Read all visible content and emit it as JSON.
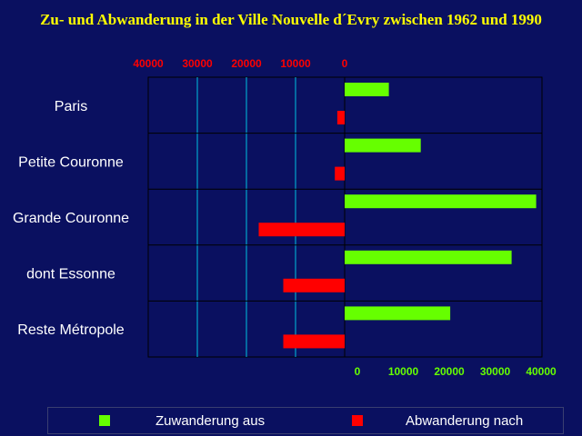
{
  "chart_data": {
    "type": "bar",
    "title": "Zu- und Abwanderung in der Ville Nouvelle d´Evry zwischen 1962 und 1990",
    "categories": [
      "Paris",
      "Petite Couronne",
      "Grande Couronne",
      "dont Essonne",
      "Reste Métropole"
    ],
    "series": [
      {
        "name": "Zuwanderung aus",
        "color": "#66ff00",
        "values": [
          9000,
          15500,
          39000,
          34000,
          21500
        ]
      },
      {
        "name": "Abwanderung nach",
        "color": "#ff0000",
        "values": [
          1500,
          2000,
          17500,
          12500,
          12500
        ]
      }
    ],
    "x_top_ticks": [
      "40000",
      "30000",
      "20000",
      "10000",
      "0"
    ],
    "x_bottom_ticks": [
      "0",
      "10000",
      "20000",
      "30000",
      "40000"
    ],
    "xlim_right": [
      0,
      40000
    ],
    "xlim_left": [
      0,
      40000
    ],
    "legend": "bottom",
    "colors": {
      "background": "#0a1060",
      "title": "#ffff00",
      "grid": "#00c0e0",
      "top_ticks": "#ff0000",
      "bottom_ticks": "#66ff00"
    }
  }
}
